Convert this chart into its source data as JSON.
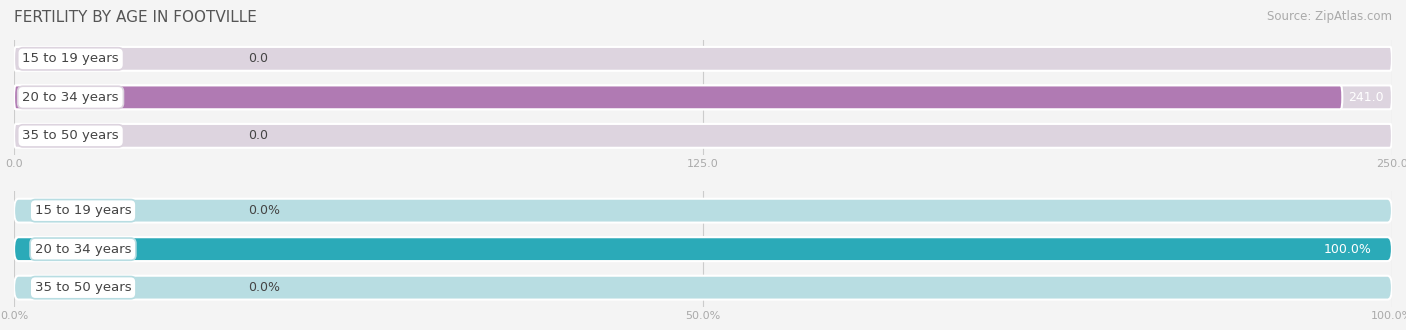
{
  "title": "FERTILITY BY AGE IN FOOTVILLE",
  "source": "Source: ZipAtlas.com",
  "top_chart": {
    "categories": [
      "15 to 19 years",
      "20 to 34 years",
      "35 to 50 years"
    ],
    "values": [
      0.0,
      241.0,
      0.0
    ],
    "max_val": 250.0,
    "xlim": [
      0,
      250
    ],
    "xticks": [
      0.0,
      125.0,
      250.0
    ],
    "xtick_labels": [
      "0.0",
      "125.0",
      "250.0"
    ],
    "bar_color_full": "#b07ab3",
    "bar_color_empty": "#ddd4df",
    "bar_height": 0.62
  },
  "bottom_chart": {
    "categories": [
      "15 to 19 years",
      "20 to 34 years",
      "35 to 50 years"
    ],
    "values": [
      0.0,
      100.0,
      0.0
    ],
    "max_val": 100.0,
    "xlim": [
      0,
      100
    ],
    "xticks": [
      0.0,
      50.0,
      100.0
    ],
    "xtick_labels": [
      "0.0%",
      "50.0%",
      "100.0%"
    ],
    "bar_color_full": "#2baab8",
    "bar_color_empty": "#b8dde2",
    "bar_height": 0.62
  },
  "background_color": "#f4f4f4",
  "title_color": "#555555",
  "label_color": "#444444",
  "tick_color": "#aaaaaa",
  "grid_color": "#cccccc",
  "category_label_fontsize": 9.5,
  "value_label_fontsize": 9,
  "title_fontsize": 11,
  "source_fontsize": 8.5
}
